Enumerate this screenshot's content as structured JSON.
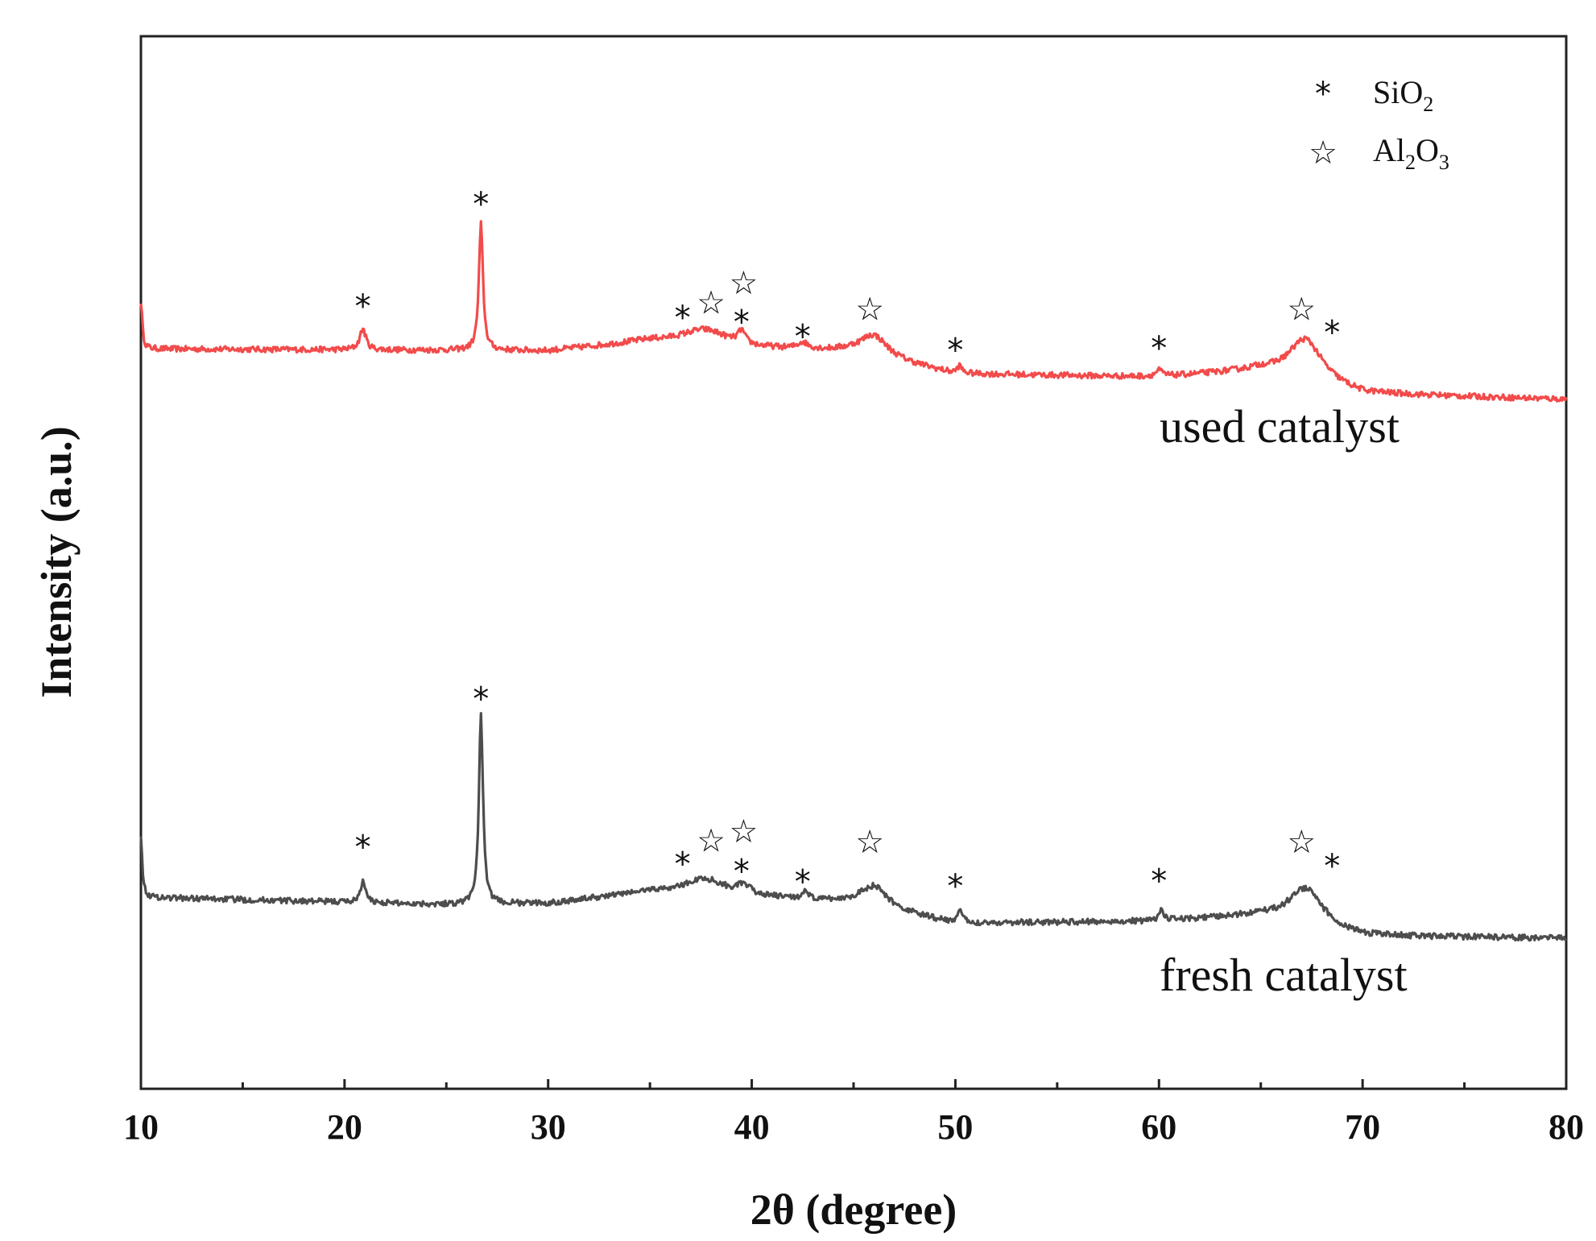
{
  "chart_data": {
    "type": "line",
    "title": "",
    "xlabel": "2θ (degree)",
    "ylabel": "Intensity (a.u.)",
    "xlim": [
      10,
      80
    ],
    "ylim": [
      0,
      100
    ],
    "xticks": [
      10,
      20,
      30,
      40,
      50,
      60,
      70,
      80
    ],
    "xtick_labels": [
      "10",
      "20",
      "30",
      "40",
      "50",
      "60",
      "70",
      "80"
    ],
    "grid": false,
    "legend": {
      "position": "top-right",
      "entries": [
        {
          "symbol": "*",
          "base": "SiO",
          "sub": "2",
          "text": "SiO2"
        },
        {
          "symbol": "☆",
          "base": "Al",
          "sub": "2",
          "base2": "O",
          "sub2": "3",
          "text": "Al2O3"
        }
      ]
    },
    "series": [
      {
        "name": "used catalyst",
        "color": "#f24b4b",
        "baseline": [
          [
            10,
            70.3
          ],
          [
            30,
            70.1
          ],
          [
            35,
            71.0
          ],
          [
            40,
            70.3
          ],
          [
            45,
            70.0
          ],
          [
            50,
            67.9
          ],
          [
            60,
            67.6
          ],
          [
            65,
            68.2
          ],
          [
            70,
            66.0
          ],
          [
            80,
            65.5
          ]
        ],
        "peaks": [
          {
            "x": 10.0,
            "h": 4.5,
            "w": 0.08
          },
          {
            "x": 20.9,
            "h": 2.0,
            "w": 0.18
          },
          {
            "x": 26.7,
            "h": 12.0,
            "w": 0.12
          },
          {
            "x": 37.7,
            "h": 1.5,
            "w": 1.4
          },
          {
            "x": 39.5,
            "h": 1.2,
            "w": 0.2
          },
          {
            "x": 42.5,
            "h": 0.6,
            "w": 0.3
          },
          {
            "x": 46.0,
            "h": 2.0,
            "w": 0.8
          },
          {
            "x": 50.2,
            "h": 0.7,
            "w": 0.15
          },
          {
            "x": 60.0,
            "h": 0.6,
            "w": 0.2
          },
          {
            "x": 67.2,
            "h": 4.0,
            "w": 1.0
          }
        ],
        "markers": [
          {
            "x": 20.9,
            "y": 75.0,
            "symbol": "*"
          },
          {
            "x": 26.7,
            "y": 84.7,
            "symbol": "*"
          },
          {
            "x": 36.6,
            "y": 73.9,
            "symbol": "*"
          },
          {
            "x": 38.0,
            "y": 74.7,
            "symbol": "☆"
          },
          {
            "x": 39.6,
            "y": 76.6,
            "symbol": "☆"
          },
          {
            "x": 39.5,
            "y": 73.5,
            "symbol": "*"
          },
          {
            "x": 42.5,
            "y": 72.1,
            "symbol": "*"
          },
          {
            "x": 45.8,
            "y": 74.1,
            "symbol": "☆"
          },
          {
            "x": 50.0,
            "y": 70.8,
            "symbol": "*"
          },
          {
            "x": 60.0,
            "y": 71.0,
            "symbol": "*"
          },
          {
            "x": 67.0,
            "y": 74.1,
            "symbol": "☆"
          },
          {
            "x": 68.5,
            "y": 72.5,
            "symbol": "*"
          }
        ]
      },
      {
        "name": "fresh catalyst",
        "color": "#4d4d4d",
        "baseline": [
          [
            10,
            18.2
          ],
          [
            25,
            17.5
          ],
          [
            30,
            17.6
          ],
          [
            35,
            18.7
          ],
          [
            40,
            18.2
          ],
          [
            45,
            17.6
          ],
          [
            50,
            15.7
          ],
          [
            60,
            15.9
          ],
          [
            65,
            16.4
          ],
          [
            70,
            14.5
          ],
          [
            80,
            14.3
          ]
        ],
        "peaks": [
          {
            "x": 10.0,
            "h": 6.0,
            "w": 0.08
          },
          {
            "x": 20.9,
            "h": 2.0,
            "w": 0.15
          },
          {
            "x": 26.7,
            "h": 18.0,
            "w": 0.12
          },
          {
            "x": 37.7,
            "h": 1.5,
            "w": 1.2
          },
          {
            "x": 39.6,
            "h": 0.8,
            "w": 0.4
          },
          {
            "x": 42.6,
            "h": 0.6,
            "w": 0.2
          },
          {
            "x": 46.0,
            "h": 2.0,
            "w": 0.8
          },
          {
            "x": 50.2,
            "h": 1.2,
            "w": 0.15
          },
          {
            "x": 60.1,
            "h": 1.0,
            "w": 0.15
          },
          {
            "x": 67.2,
            "h": 3.5,
            "w": 1.0
          }
        ],
        "markers": [
          {
            "x": 20.9,
            "y": 23.6,
            "symbol": "*"
          },
          {
            "x": 26.7,
            "y": 37.7,
            "symbol": "*"
          },
          {
            "x": 36.6,
            "y": 22.0,
            "symbol": "*"
          },
          {
            "x": 38.0,
            "y": 23.6,
            "symbol": "☆"
          },
          {
            "x": 39.6,
            "y": 24.5,
            "symbol": "☆"
          },
          {
            "x": 39.5,
            "y": 21.3,
            "symbol": "*"
          },
          {
            "x": 42.5,
            "y": 20.3,
            "symbol": "*"
          },
          {
            "x": 45.8,
            "y": 23.5,
            "symbol": "☆"
          },
          {
            "x": 50.0,
            "y": 19.9,
            "symbol": "*"
          },
          {
            "x": 60.0,
            "y": 20.4,
            "symbol": "*"
          },
          {
            "x": 67.0,
            "y": 23.5,
            "symbol": "☆"
          },
          {
            "x": 68.5,
            "y": 21.8,
            "symbol": "*"
          }
        ]
      }
    ]
  }
}
